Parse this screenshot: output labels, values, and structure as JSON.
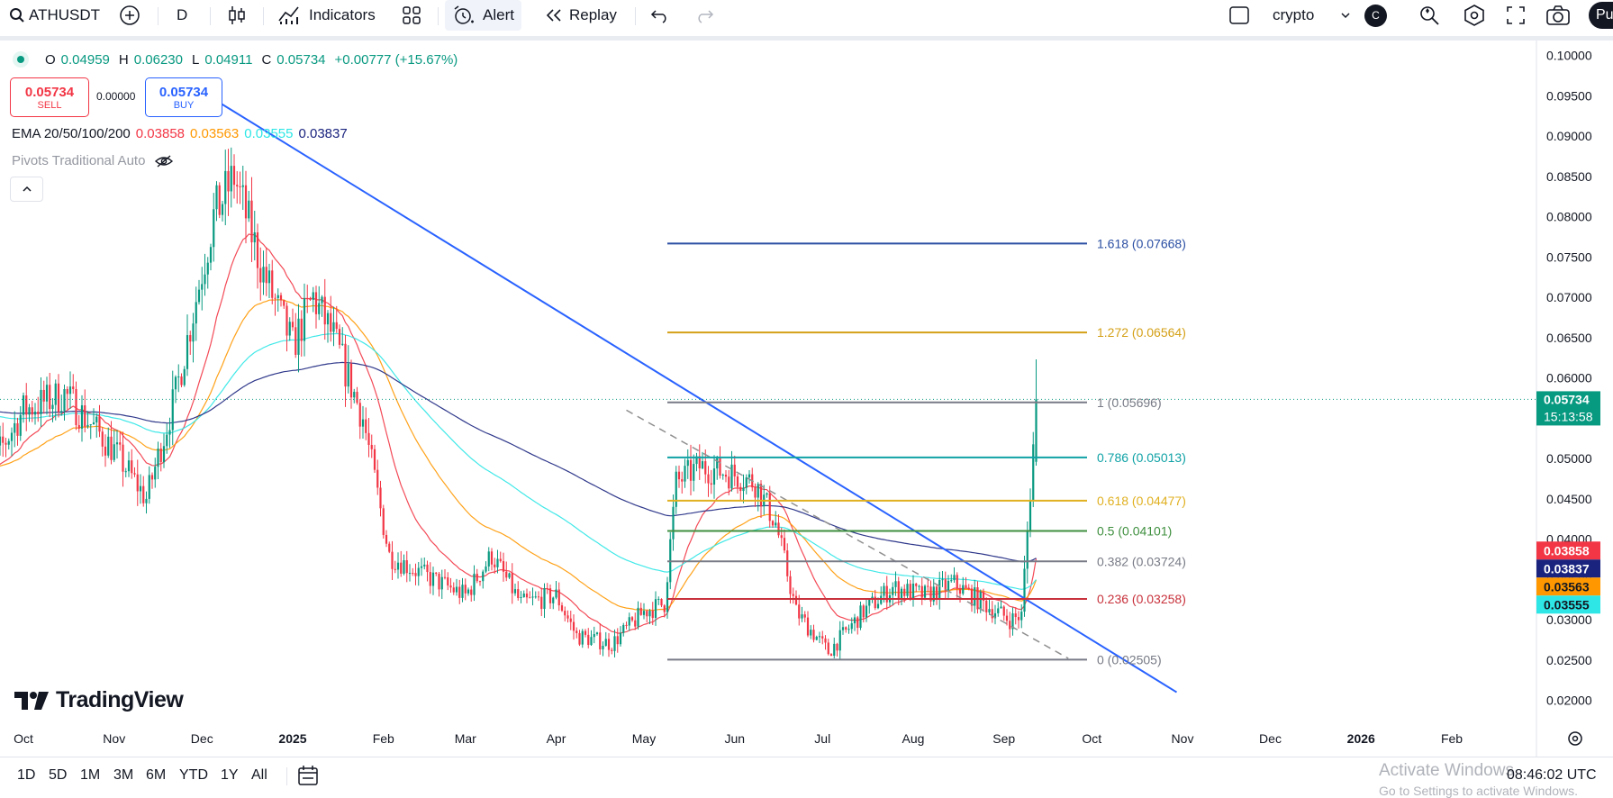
{
  "toolbar": {
    "symbol": "ATHUSDT",
    "interval": "D",
    "indicators_label": "Indicators",
    "alert_label": "Alert",
    "replay_label": "Replay",
    "layout_name": "crypto",
    "avatar_letter": "C",
    "publish_label": "Pu"
  },
  "legend": {
    "o_label": "O",
    "o_value": "0.04959",
    "h_label": "H",
    "h_value": "0.06230",
    "l_label": "L",
    "l_value": "0.04911",
    "c_label": "C",
    "c_value": "0.05734",
    "change": "+0.00777 (+15.67%)",
    "sell_price": "0.05734",
    "sell_label": "SELL",
    "spread": "0.00000",
    "buy_price": "0.05734",
    "buy_label": "BUY",
    "ema_label": "EMA 20/50/100/200",
    "ema20": "0.03858",
    "ema50": "0.03563",
    "ema100": "0.03555",
    "ema200": "0.03837",
    "pivots_label": "Pivots Traditional Auto"
  },
  "colors": {
    "up": "#089981",
    "down": "#f23645",
    "ema20": "#f23645",
    "ema50": "#ff9800",
    "ema100": "#2ee6e6",
    "ema200": "#1a237e",
    "trendline": "#2962ff"
  },
  "chart_data": {
    "type": "candlestick",
    "title": "",
    "symbol": "ATHUSDT",
    "interval": "1D",
    "y_ticks": [
      "0.02000",
      "0.02500",
      "0.03000",
      "0.03500",
      "0.04000",
      "0.04500",
      "0.05000",
      "0.05500",
      "0.06000",
      "0.06500",
      "0.07000",
      "0.07500",
      "0.08000",
      "0.08500",
      "0.09000",
      "0.09500",
      "0.10000"
    ],
    "ylim": [
      0.0195,
      0.1003
    ],
    "x_ticks": [
      "Oct",
      "Nov",
      "Dec",
      "2025",
      "Feb",
      "Mar",
      "Apr",
      "May",
      "Jun",
      "Jul",
      "Aug",
      "Sep",
      "Oct",
      "Nov",
      "Dec",
      "2026",
      "Feb"
    ],
    "last_price": "0.05734",
    "countdown": "15:13:58",
    "ema_tags": [
      {
        "name": "EMA 20",
        "value": "0.03858",
        "color": "#f23645"
      },
      {
        "name": "EMA 200",
        "value": "0.03837",
        "color": "#1a237e"
      },
      {
        "name": "EMA 50",
        "value": "0.03563",
        "color": "#ff9800"
      },
      {
        "name": "EMA 100",
        "value": "0.03555",
        "color": "#2ee6e6"
      }
    ],
    "fib_levels": [
      {
        "ratio": "1.618",
        "price": 0.07668,
        "label": "1.618 (0.07668)",
        "color": "#2b4fa3"
      },
      {
        "ratio": "1.272",
        "price": 0.06564,
        "label": "1.272 (0.06564)",
        "color": "#d4a017"
      },
      {
        "ratio": "1",
        "price": 0.05696,
        "label": "1 (0.05696)",
        "color": "#787b86"
      },
      {
        "ratio": "0.786",
        "price": 0.05013,
        "label": "0.786 (0.05013)",
        "color": "#10a2a6"
      },
      {
        "ratio": "0.618",
        "price": 0.04477,
        "label": "0.618 (0.04477)",
        "color": "#e0b020"
      },
      {
        "ratio": "0.5",
        "price": 0.04101,
        "label": "0.5 (0.04101)",
        "color": "#3f8f3f"
      },
      {
        "ratio": "0.382",
        "price": 0.03724,
        "label": "0.382 (0.03724)",
        "color": "#787b86"
      },
      {
        "ratio": "0.236",
        "price": 0.03258,
        "label": "0.236 (0.03258)",
        "color": "#c8323c"
      },
      {
        "ratio": "0",
        "price": 0.02505,
        "label": "0 (0.02505)",
        "color": "#787b86"
      }
    ],
    "anchors": [
      [
        "2024-09-15",
        0.046
      ],
      [
        "2024-10-01",
        0.056
      ],
      [
        "2024-10-15",
        0.058
      ],
      [
        "2024-11-01",
        0.051
      ],
      [
        "2024-11-12",
        0.045
      ],
      [
        "2024-11-22",
        0.058
      ],
      [
        "2024-12-05",
        0.08
      ],
      [
        "2024-12-12",
        0.085
      ],
      [
        "2024-12-22",
        0.073
      ],
      [
        "2025-01-01",
        0.064
      ],
      [
        "2025-01-08",
        0.07
      ],
      [
        "2025-01-15",
        0.065
      ],
      [
        "2025-01-25",
        0.055
      ],
      [
        "2025-02-03",
        0.038
      ],
      [
        "2025-02-15",
        0.0355
      ],
      [
        "2025-03-01",
        0.033
      ],
      [
        "2025-03-10",
        0.038
      ],
      [
        "2025-03-20",
        0.032
      ],
      [
        "2025-04-01",
        0.033
      ],
      [
        "2025-04-08",
        0.028
      ],
      [
        "2025-04-20",
        0.027
      ],
      [
        "2025-05-01",
        0.031
      ],
      [
        "2025-05-08",
        0.032
      ],
      [
        "2025-05-12",
        0.047
      ],
      [
        "2025-05-20",
        0.049
      ],
      [
        "2025-06-01",
        0.048
      ],
      [
        "2025-06-08",
        0.047
      ],
      [
        "2025-06-15",
        0.042
      ],
      [
        "2025-06-22",
        0.031
      ],
      [
        "2025-07-03",
        0.026
      ],
      [
        "2025-07-15",
        0.031
      ],
      [
        "2025-07-25",
        0.034
      ],
      [
        "2025-08-05",
        0.033
      ],
      [
        "2025-08-15",
        0.0345
      ],
      [
        "2025-08-25",
        0.032
      ],
      [
        "2025-09-03",
        0.03
      ],
      [
        "2025-09-07",
        0.0305
      ],
      [
        "2025-09-09",
        0.041
      ],
      [
        "2025-09-10",
        0.046
      ],
      [
        "2025-09-12",
        0.0573
      ]
    ],
    "last_candle": {
      "o": 0.04959,
      "h": 0.0623,
      "l": 0.04911,
      "c": 0.05734
    },
    "trendline": {
      "from": [
        "2024-12-01",
        0.0955
      ],
      "to": [
        "2025-10-30",
        0.021
      ]
    },
    "dashed_line": {
      "from": [
        "2025-04-25",
        0.056
      ],
      "to": [
        "2025-09-23",
        0.0252
      ]
    },
    "grid": false,
    "legend_position": "top-left"
  },
  "timeline": {
    "ranges": [
      "1D",
      "5D",
      "1M",
      "3M",
      "6M",
      "YTD",
      "1Y",
      "All"
    ],
    "clock": "08:46:02 UTC"
  },
  "brand": {
    "name": "TradingView"
  },
  "windows_notice": {
    "title": "Activate Windows",
    "sub": "Go to Settings to activate Windows."
  }
}
